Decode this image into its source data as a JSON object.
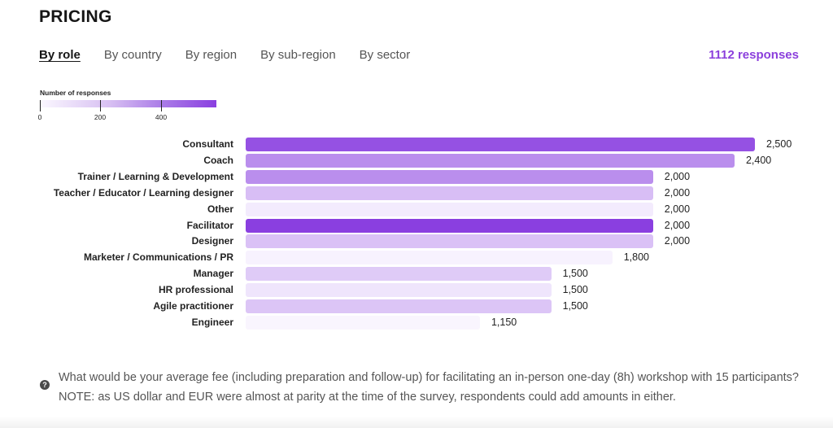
{
  "title": "PRICING",
  "tabs": [
    {
      "label": "By role",
      "active": true
    },
    {
      "label": "By country",
      "active": false
    },
    {
      "label": "By region",
      "active": false
    },
    {
      "label": "By sub-region",
      "active": false
    },
    {
      "label": "By sector",
      "active": false
    }
  ],
  "responses_label": "1112 responses",
  "accent_color": "#8b3fdc",
  "legend": {
    "title": "Number of responses",
    "ticks": [
      "0",
      "200",
      "400"
    ]
  },
  "chart_data": {
    "type": "bar",
    "orientation": "horizontal",
    "title": "",
    "xlabel": "",
    "ylabel": "",
    "xlim": [
      0,
      2500
    ],
    "color_encoding": "Number of responses",
    "color_range": [
      0,
      575
    ],
    "categories": [
      "Consultant",
      "Coach",
      "Trainer / Learning & Development",
      "Teacher / Educator / Learning designer",
      "Other",
      "Facilitator",
      "Designer",
      "Marketer / Communications / PR",
      "Manager",
      "HR professional",
      "Agile practitioner",
      "Engineer"
    ],
    "values": [
      2500,
      2400,
      2000,
      2000,
      2000,
      2000,
      2000,
      1800,
      1500,
      1500,
      1500,
      1150
    ],
    "value_labels": [
      "2,500",
      "2,400",
      "2,000",
      "2,000",
      "2,000",
      "2,000",
      "2,000",
      "1,800",
      "1,500",
      "1,500",
      "1,500",
      "1,150"
    ],
    "response_counts": [
      520,
      330,
      330,
      180,
      40,
      575,
      170,
      20,
      140,
      60,
      160,
      10
    ]
  },
  "note": "What would be your average fee (including preparation and follow-up) for facilitating an in-person one-day (8h) workshop with 15 participants? NOTE: as US dollar and EUR were almost at parity at the time of the survey, respondents could add amounts in either.",
  "help_icon": "question-circle-icon"
}
